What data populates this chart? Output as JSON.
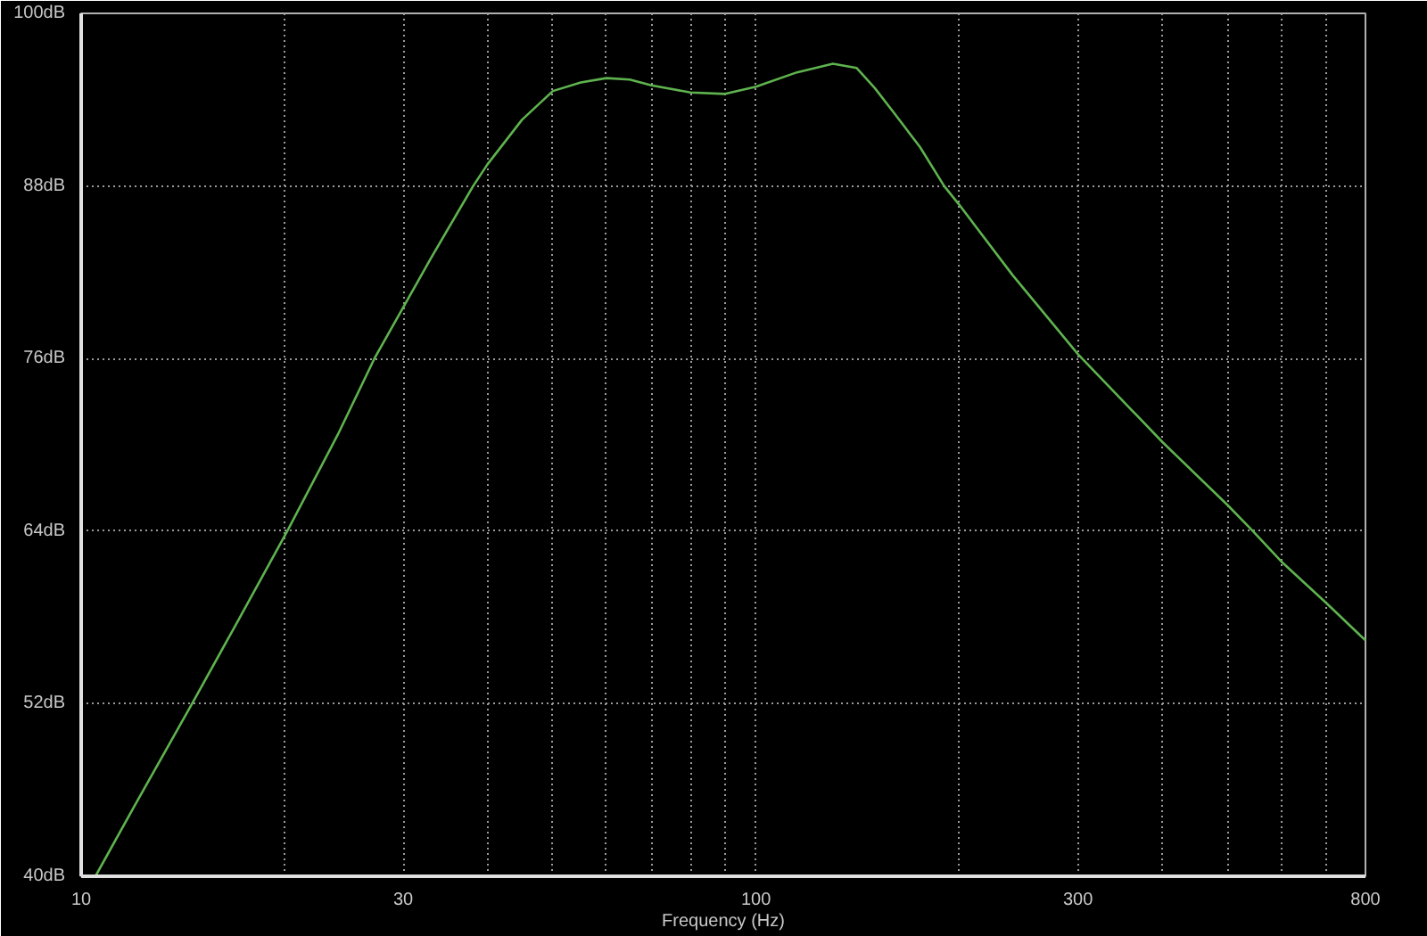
{
  "chart_data": {
    "type": "line",
    "xlabel": "Frequency (Hz)",
    "log": "x",
    "grid": true,
    "line_style": "solid",
    "x": [
      10.5,
      12,
      14.6,
      17,
      20.2,
      24,
      27.2,
      33,
      38.1,
      40,
      45,
      50,
      55,
      60,
      65,
      70,
      80,
      90,
      100,
      115,
      130,
      141,
      150,
      160,
      175,
      190,
      200,
      240,
      300,
      400,
      500,
      545,
      600,
      700,
      800
    ],
    "series": [
      {
        "color": "#5fb34f",
        "values": [
          40,
          44.9,
          52,
          57.6,
          64,
          70.7,
          76,
          83,
          88,
          89.5,
          92.6,
          94.6,
          95.2,
          95.5,
          95.4,
          95,
          94.5,
          94.4,
          94.9,
          95.9,
          96.5,
          96.2,
          94.8,
          93.1,
          90.7,
          88,
          86.7,
          81.8,
          76.3,
          70.2,
          65.8,
          64,
          61.9,
          59,
          56.4
        ]
      }
    ],
    "xlim": [
      10,
      800
    ],
    "ylim": [
      40,
      100
    ],
    "xticks": [
      10,
      {
        "value": 20,
        "label": null
      },
      30,
      {
        "value": 40,
        "label": null
      },
      {
        "value": 50,
        "label": null
      },
      {
        "value": 60,
        "label": null
      },
      {
        "value": 70,
        "label": null
      },
      {
        "value": 80,
        "label": null
      },
      {
        "value": 90,
        "label": null
      },
      100,
      {
        "value": 200,
        "label": null
      },
      300,
      {
        "value": 400,
        "label": null
      },
      {
        "value": 500,
        "label": null
      },
      {
        "value": 600,
        "label": null
      },
      {
        "value": 700,
        "label": null
      },
      800
    ],
    "yticks": [
      {
        "value": 40,
        "label": "40dB"
      },
      {
        "value": 52,
        "label": "52dB"
      },
      {
        "value": 64,
        "label": "64dB"
      },
      {
        "value": 76,
        "label": "76dB"
      },
      {
        "value": 88,
        "label": "88dB"
      },
      {
        "value": 100,
        "label": "100dB"
      }
    ]
  }
}
